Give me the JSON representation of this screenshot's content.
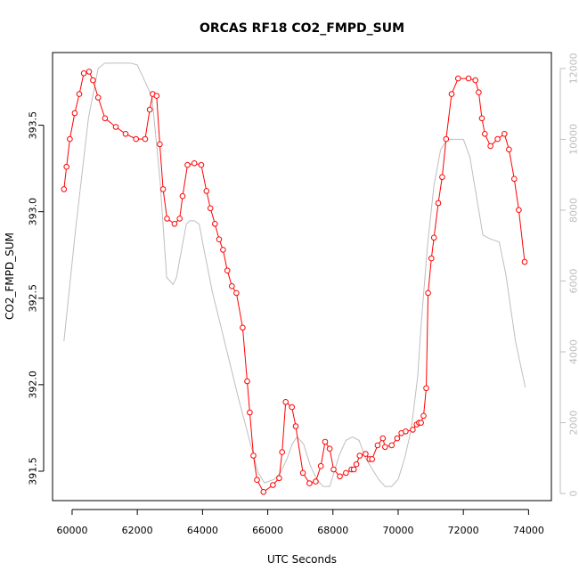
{
  "chart_data": {
    "type": "line",
    "title": "ORCAS RF18 CO2_FMPD_SUM",
    "xlabel": "UTC Seconds",
    "ylabel": "CO2_FMPD_SUM",
    "xlim": [
      59400,
      74700
    ],
    "ylim": [
      391.33,
      393.92
    ],
    "y2lim": [
      -200,
      12450
    ],
    "x_ticks": [
      60000,
      62000,
      64000,
      66000,
      68000,
      70000,
      72000,
      74000
    ],
    "x_tick_labels": [
      "60000",
      "62000",
      "64000",
      "66000",
      "68000",
      "70000",
      "72000",
      "74000"
    ],
    "y_ticks": [
      391.5,
      392.0,
      392.5,
      393.0,
      393.5
    ],
    "y_tick_labels": [
      "391.5",
      "392.0",
      "392.5",
      "393.0",
      "393.5"
    ],
    "y2_ticks": [
      0,
      2000,
      4000,
      6000,
      8000,
      10000,
      12000
    ],
    "y2_tick_labels": [
      "0",
      "2000",
      "4000",
      "6000",
      "8000",
      "10000",
      "12000"
    ],
    "grid": false,
    "colors": {
      "co2": "#ff0000",
      "altitude": "#bebebe",
      "axis": "#000000",
      "right_axis": "#bdbdbd"
    },
    "series": [
      {
        "axis": "left",
        "style": "line+points",
        "x": [
          59750,
          59830,
          59930,
          60080,
          60220,
          60360,
          60520,
          60640,
          60800,
          61010,
          61340,
          61640,
          61960,
          62240,
          62380,
          62470,
          62590,
          62690,
          62790,
          62910,
          63140,
          63300,
          63390,
          63540,
          63750,
          63960,
          64120,
          64240,
          64380,
          64510,
          64630,
          64760,
          64900,
          65040,
          65230,
          65370,
          65450,
          65560,
          65670,
          65870,
          66160,
          66350,
          66440,
          66550,
          66740,
          66860,
          67080,
          67280,
          67470,
          67630,
          67760,
          67900,
          68020,
          68210,
          68400,
          68570,
          68640,
          68720,
          68820,
          69000,
          69120,
          69200,
          69370,
          69530,
          69600,
          69800,
          69970,
          70100,
          70230,
          70450,
          70570,
          70640,
          70700,
          70780,
          70860,
          70920,
          71020,
          71100,
          71230,
          71350,
          71470,
          71640,
          71840,
          72160,
          72370,
          72470,
          72570,
          72660,
          72830,
          73050,
          73260,
          73400,
          73560,
          73700,
          73880
        ],
        "y": [
          393.13,
          393.26,
          393.42,
          393.57,
          393.68,
          393.8,
          393.81,
          393.76,
          393.66,
          393.54,
          393.49,
          393.45,
          393.42,
          393.42,
          393.59,
          393.68,
          393.67,
          393.39,
          393.13,
          392.96,
          392.93,
          392.96,
          393.09,
          393.27,
          393.28,
          393.27,
          393.12,
          393.02,
          392.93,
          392.84,
          392.78,
          392.66,
          392.57,
          392.53,
          392.33,
          392.02,
          391.84,
          391.59,
          391.45,
          391.38,
          391.42,
          391.46,
          391.61,
          391.9,
          391.87,
          391.76,
          391.49,
          391.43,
          391.44,
          391.53,
          391.67,
          391.63,
          391.51,
          391.47,
          391.49,
          391.51,
          391.51,
          391.54,
          391.59,
          391.6,
          391.57,
          391.57,
          391.65,
          391.69,
          391.64,
          391.65,
          391.69,
          391.72,
          391.73,
          391.74,
          391.77,
          391.78,
          391.78,
          391.82,
          391.98,
          392.53,
          392.73,
          392.85,
          393.05,
          393.2,
          393.42,
          393.68,
          393.77,
          393.77,
          393.76,
          393.69,
          393.54,
          393.45,
          393.38,
          393.42,
          393.45,
          393.36,
          393.19,
          393.01,
          392.71
        ]
      },
      {
        "axis": "right",
        "style": "line",
        "x": [
          59750,
          60100,
          60500,
          60800,
          61000,
          61400,
          61800,
          62000,
          62200,
          62450,
          62700,
          62900,
          63100,
          63200,
          63500,
          63600,
          63750,
          63900,
          64000,
          64300,
          64700,
          65100,
          65500,
          65700,
          65900,
          66200,
          66400,
          66600,
          66750,
          66900,
          67100,
          67300,
          67500,
          67700,
          67900,
          68000,
          68200,
          68400,
          68600,
          68800,
          69000,
          69200,
          69400,
          69600,
          69800,
          70000,
          70200,
          70400,
          70600,
          70700,
          70900,
          71100,
          71300,
          71500,
          71700,
          72000,
          72200,
          72400,
          72600,
          72800,
          73100,
          73300,
          73600,
          73900
        ],
        "y": [
          4300,
          7400,
          10600,
          12000,
          12150,
          12150,
          12150,
          12100,
          11700,
          11200,
          8800,
          6100,
          5900,
          6100,
          7600,
          7700,
          7700,
          7600,
          7100,
          5700,
          4200,
          2700,
          1300,
          600,
          300,
          400,
          600,
          1000,
          1400,
          1600,
          1400,
          800,
          400,
          200,
          200,
          500,
          1100,
          1500,
          1600,
          1500,
          1000,
          700,
          400,
          200,
          200,
          400,
          1000,
          1800,
          3300,
          4700,
          7000,
          8700,
          9700,
          10000,
          10000,
          10000,
          9500,
          8400,
          7300,
          7200,
          7100,
          6200,
          4300,
          3000
        ]
      }
    ]
  }
}
